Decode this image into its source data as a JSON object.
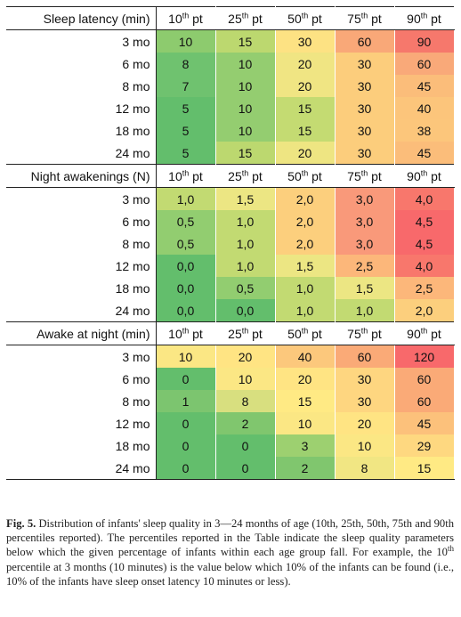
{
  "sections": [
    {
      "title": "Sleep latency (min)",
      "headers": [
        [
          "10",
          "th",
          " pt"
        ],
        [
          "25",
          "th",
          " pt"
        ],
        [
          "50",
          "th",
          " pt"
        ],
        [
          "75",
          "th",
          " pt"
        ],
        [
          "90",
          "th",
          " pt"
        ]
      ],
      "rows": [
        {
          "age": "3 mo",
          "values": [
            "10",
            "15",
            "30",
            "60",
            "90"
          ],
          "colors": [
            "#8dcb6e",
            "#bcd86f",
            "#fde283",
            "#f9a878",
            "#f6786c"
          ]
        },
        {
          "age": "6 mo",
          "values": [
            "8",
            "10",
            "20",
            "30",
            "60"
          ],
          "colors": [
            "#6fc26f",
            "#94cd70",
            "#f0e583",
            "#fccd7c",
            "#f9a979"
          ]
        },
        {
          "age": "8 mo",
          "values": [
            "7",
            "10",
            "20",
            "30",
            "45"
          ],
          "colors": [
            "#6fc26f",
            "#94cd70",
            "#f0e583",
            "#fccd7c",
            "#fbbd7a"
          ]
        },
        {
          "age": "12 mo",
          "values": [
            "5",
            "10",
            "15",
            "30",
            "40"
          ],
          "colors": [
            "#63be6c",
            "#94cd70",
            "#c4db72",
            "#fccd7c",
            "#fcc57b"
          ]
        },
        {
          "age": "18 mo",
          "values": [
            "5",
            "10",
            "15",
            "30",
            "38"
          ],
          "colors": [
            "#63be6c",
            "#94cd70",
            "#c4db72",
            "#fccd7c",
            "#fcc67b"
          ]
        },
        {
          "age": "24 mo",
          "values": [
            "5",
            "15",
            "20",
            "30",
            "45"
          ],
          "colors": [
            "#63be6c",
            "#bcd86f",
            "#eee582",
            "#fccd7c",
            "#fbbd7a"
          ]
        }
      ]
    },
    {
      "title": "Night awakenings (N)",
      "headers": [
        [
          "10",
          "th",
          " pt"
        ],
        [
          "25",
          "th",
          " pt"
        ],
        [
          "50",
          "th",
          " pt"
        ],
        [
          "75",
          "th",
          " pt"
        ],
        [
          "90",
          "th",
          " pt"
        ]
      ],
      "rows": [
        {
          "age": "3 mo",
          "values": [
            "1,0",
            "1,5",
            "2,0",
            "3,0",
            "4,0"
          ],
          "colors": [
            "#c2da72",
            "#ece683",
            "#fccf7d",
            "#f9997a",
            "#f8776c"
          ]
        },
        {
          "age": "6 mo",
          "values": [
            "0,5",
            "1,0",
            "2,0",
            "3,0",
            "4,5"
          ],
          "colors": [
            "#92cd70",
            "#c2da72",
            "#fccf7d",
            "#f9997a",
            "#f8696b"
          ]
        },
        {
          "age": "8 mo",
          "values": [
            "0,5",
            "1,0",
            "2,0",
            "3,0",
            "4,5"
          ],
          "colors": [
            "#92cd70",
            "#c2da72",
            "#fccf7d",
            "#f9997a",
            "#f8696b"
          ]
        },
        {
          "age": "12 mo",
          "values": [
            "0,0",
            "1,0",
            "1,5",
            "2,5",
            "4,0"
          ],
          "colors": [
            "#63be6c",
            "#c2da72",
            "#ece683",
            "#fcb77a",
            "#f8776c"
          ]
        },
        {
          "age": "18 mo",
          "values": [
            "0,0",
            "0,5",
            "1,0",
            "1,5",
            "2,5"
          ],
          "colors": [
            "#63be6c",
            "#92cd70",
            "#c2da72",
            "#ece683",
            "#fcb77a"
          ]
        },
        {
          "age": "24 mo",
          "values": [
            "0,0",
            "0,0",
            "1,0",
            "1,0",
            "2,0"
          ],
          "colors": [
            "#63be6c",
            "#63be6c",
            "#c2da72",
            "#c2da72",
            "#fccf7d"
          ]
        }
      ]
    },
    {
      "title": "Awake at night (min)",
      "headers": [
        [
          "10",
          "th",
          " pt"
        ],
        [
          "25",
          "th",
          " pt"
        ],
        [
          "50",
          "th",
          " pt"
        ],
        [
          "75",
          "th",
          " pt"
        ],
        [
          "90",
          "th",
          " pt"
        ]
      ],
      "rows": [
        {
          "age": "3 mo",
          "values": [
            "10",
            "20",
            "40",
            "60",
            "120"
          ],
          "colors": [
            "#fbe784",
            "#ffe483",
            "#fcc87c",
            "#faaa77",
            "#f8696b"
          ]
        },
        {
          "age": "6 mo",
          "values": [
            "0",
            "10",
            "20",
            "30",
            "60"
          ],
          "colors": [
            "#63be6c",
            "#fbe784",
            "#ffe483",
            "#fed680",
            "#faaa77"
          ]
        },
        {
          "age": "8 mo",
          "values": [
            "1",
            "8",
            "15",
            "30",
            "60"
          ],
          "colors": [
            "#7cc56f",
            "#d8df7f",
            "#ffea84",
            "#fed680",
            "#faaa77"
          ]
        },
        {
          "age": "12 mo",
          "values": [
            "0",
            "2",
            "10",
            "20",
            "45"
          ],
          "colors": [
            "#63be6c",
            "#80c66e",
            "#fbe784",
            "#ffe483",
            "#fcc17b"
          ]
        },
        {
          "age": "18 mo",
          "values": [
            "0",
            "0",
            "3",
            "10",
            "29"
          ],
          "colors": [
            "#63be6c",
            "#63be6c",
            "#9dd070",
            "#fbe784",
            "#fed880"
          ]
        },
        {
          "age": "24 mo",
          "values": [
            "0",
            "0",
            "2",
            "8",
            "15"
          ],
          "colors": [
            "#63be6c",
            "#63be6c",
            "#80c66e",
            "#f1e683",
            "#ffea84"
          ]
        }
      ]
    }
  ],
  "caption": {
    "label": "Fig. 5.",
    "text_1": " Distribution of infants' sleep quality in 3—24 months of age (10th, 25th, 50th, 75th and 90th percentiles reported). The percentiles reported in the Table indicate the sleep quality parameters below which the given percentage of infants within each age group fall. For example, the 10",
    "sup": "th",
    "text_2": " percentile at 3 months (10 minutes) is the value below which 10% of the infants can be found (i.e., 10% of the infants have sleep onset latency 10 minutes or less)."
  }
}
